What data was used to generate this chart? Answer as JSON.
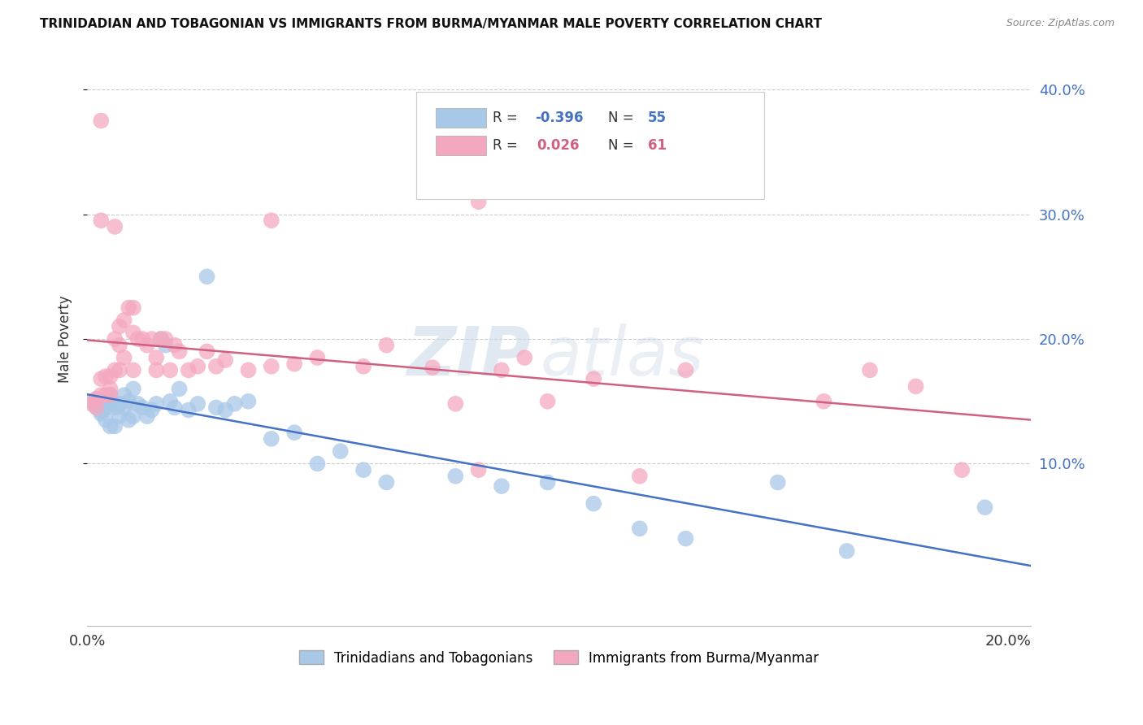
{
  "title": "TRINIDADIAN AND TOBAGONIAN VS IMMIGRANTS FROM BURMA/MYANMAR MALE POVERTY CORRELATION CHART",
  "source": "Source: ZipAtlas.com",
  "ylabel": "Male Poverty",
  "xlim": [
    0.0,
    0.205
  ],
  "ylim": [
    -0.03,
    0.43
  ],
  "blue_R": "-0.396",
  "blue_N": "55",
  "pink_R": "0.026",
  "pink_N": "61",
  "blue_color": "#a8c8e8",
  "pink_color": "#f4a8c0",
  "blue_line_color": "#4472c4",
  "pink_line_color": "#d06080",
  "watermark_zip": "ZIP",
  "watermark_atlas": "atlas",
  "legend_label_blue": "Trinidadians and Tobagonians",
  "legend_label_pink": "Immigrants from Burma/Myanmar",
  "blue_x": [
    0.001,
    0.002,
    0.002,
    0.003,
    0.003,
    0.003,
    0.004,
    0.004,
    0.004,
    0.005,
    0.005,
    0.005,
    0.006,
    0.006,
    0.006,
    0.007,
    0.007,
    0.008,
    0.008,
    0.009,
    0.009,
    0.01,
    0.01,
    0.011,
    0.012,
    0.013,
    0.014,
    0.015,
    0.016,
    0.017,
    0.018,
    0.019,
    0.02,
    0.022,
    0.024,
    0.026,
    0.028,
    0.03,
    0.032,
    0.035,
    0.04,
    0.045,
    0.05,
    0.055,
    0.06,
    0.065,
    0.08,
    0.09,
    0.1,
    0.11,
    0.12,
    0.13,
    0.15,
    0.165,
    0.195
  ],
  "blue_y": [
    0.15,
    0.152,
    0.145,
    0.148,
    0.142,
    0.14,
    0.15,
    0.145,
    0.135,
    0.155,
    0.148,
    0.13,
    0.148,
    0.145,
    0.13,
    0.148,
    0.138,
    0.155,
    0.145,
    0.15,
    0.135,
    0.16,
    0.138,
    0.148,
    0.145,
    0.138,
    0.143,
    0.148,
    0.2,
    0.195,
    0.15,
    0.145,
    0.16,
    0.143,
    0.148,
    0.25,
    0.145,
    0.143,
    0.148,
    0.15,
    0.12,
    0.125,
    0.1,
    0.11,
    0.095,
    0.085,
    0.09,
    0.082,
    0.085,
    0.068,
    0.048,
    0.04,
    0.085,
    0.03,
    0.065
  ],
  "pink_x": [
    0.001,
    0.002,
    0.002,
    0.003,
    0.003,
    0.003,
    0.003,
    0.004,
    0.004,
    0.005,
    0.005,
    0.005,
    0.006,
    0.006,
    0.006,
    0.007,
    0.007,
    0.007,
    0.008,
    0.008,
    0.009,
    0.01,
    0.01,
    0.01,
    0.011,
    0.012,
    0.013,
    0.014,
    0.015,
    0.015,
    0.016,
    0.017,
    0.018,
    0.019,
    0.02,
    0.022,
    0.024,
    0.026,
    0.028,
    0.03,
    0.035,
    0.04,
    0.04,
    0.045,
    0.05,
    0.06,
    0.065,
    0.075,
    0.08,
    0.085,
    0.09,
    0.095,
    0.1,
    0.11,
    0.12,
    0.13,
    0.16,
    0.17,
    0.18,
    0.19,
    0.085
  ],
  "pink_y": [
    0.148,
    0.152,
    0.145,
    0.375,
    0.295,
    0.168,
    0.155,
    0.17,
    0.155,
    0.16,
    0.17,
    0.155,
    0.29,
    0.2,
    0.175,
    0.21,
    0.195,
    0.175,
    0.215,
    0.185,
    0.225,
    0.225,
    0.205,
    0.175,
    0.2,
    0.2,
    0.195,
    0.2,
    0.185,
    0.175,
    0.2,
    0.2,
    0.175,
    0.195,
    0.19,
    0.175,
    0.178,
    0.19,
    0.178,
    0.183,
    0.175,
    0.178,
    0.295,
    0.18,
    0.185,
    0.178,
    0.195,
    0.177,
    0.148,
    0.31,
    0.175,
    0.185,
    0.15,
    0.168,
    0.09,
    0.175,
    0.15,
    0.175,
    0.162,
    0.095,
    0.095
  ]
}
